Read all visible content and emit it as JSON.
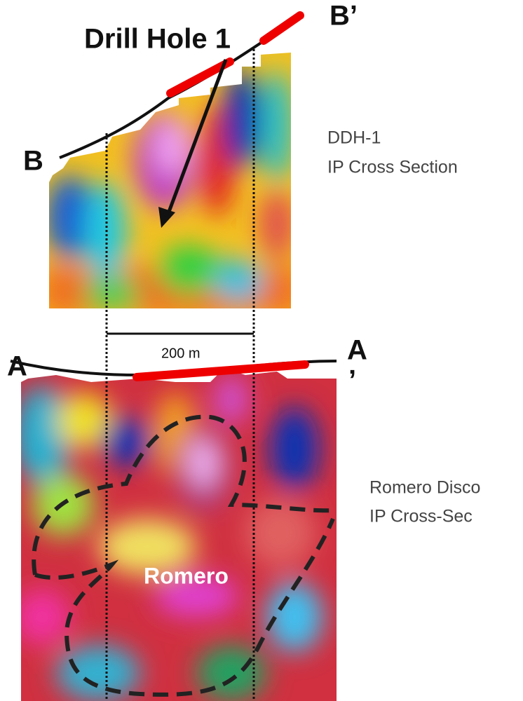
{
  "labels": {
    "drill_hole": "Drill Hole 1",
    "b_prime": "B’",
    "b": "B",
    "a_left": "A",
    "a_right": "A",
    "a_right_mark": "’",
    "scale": "200 m",
    "romero": "Romero"
  },
  "captions": {
    "ddh": {
      "line1": "DDH-1",
      "line2": "IP Cross Section"
    },
    "romero": {
      "line1": "Romero Disco",
      "line2": "IP Cross-Sec"
    }
  }
}
